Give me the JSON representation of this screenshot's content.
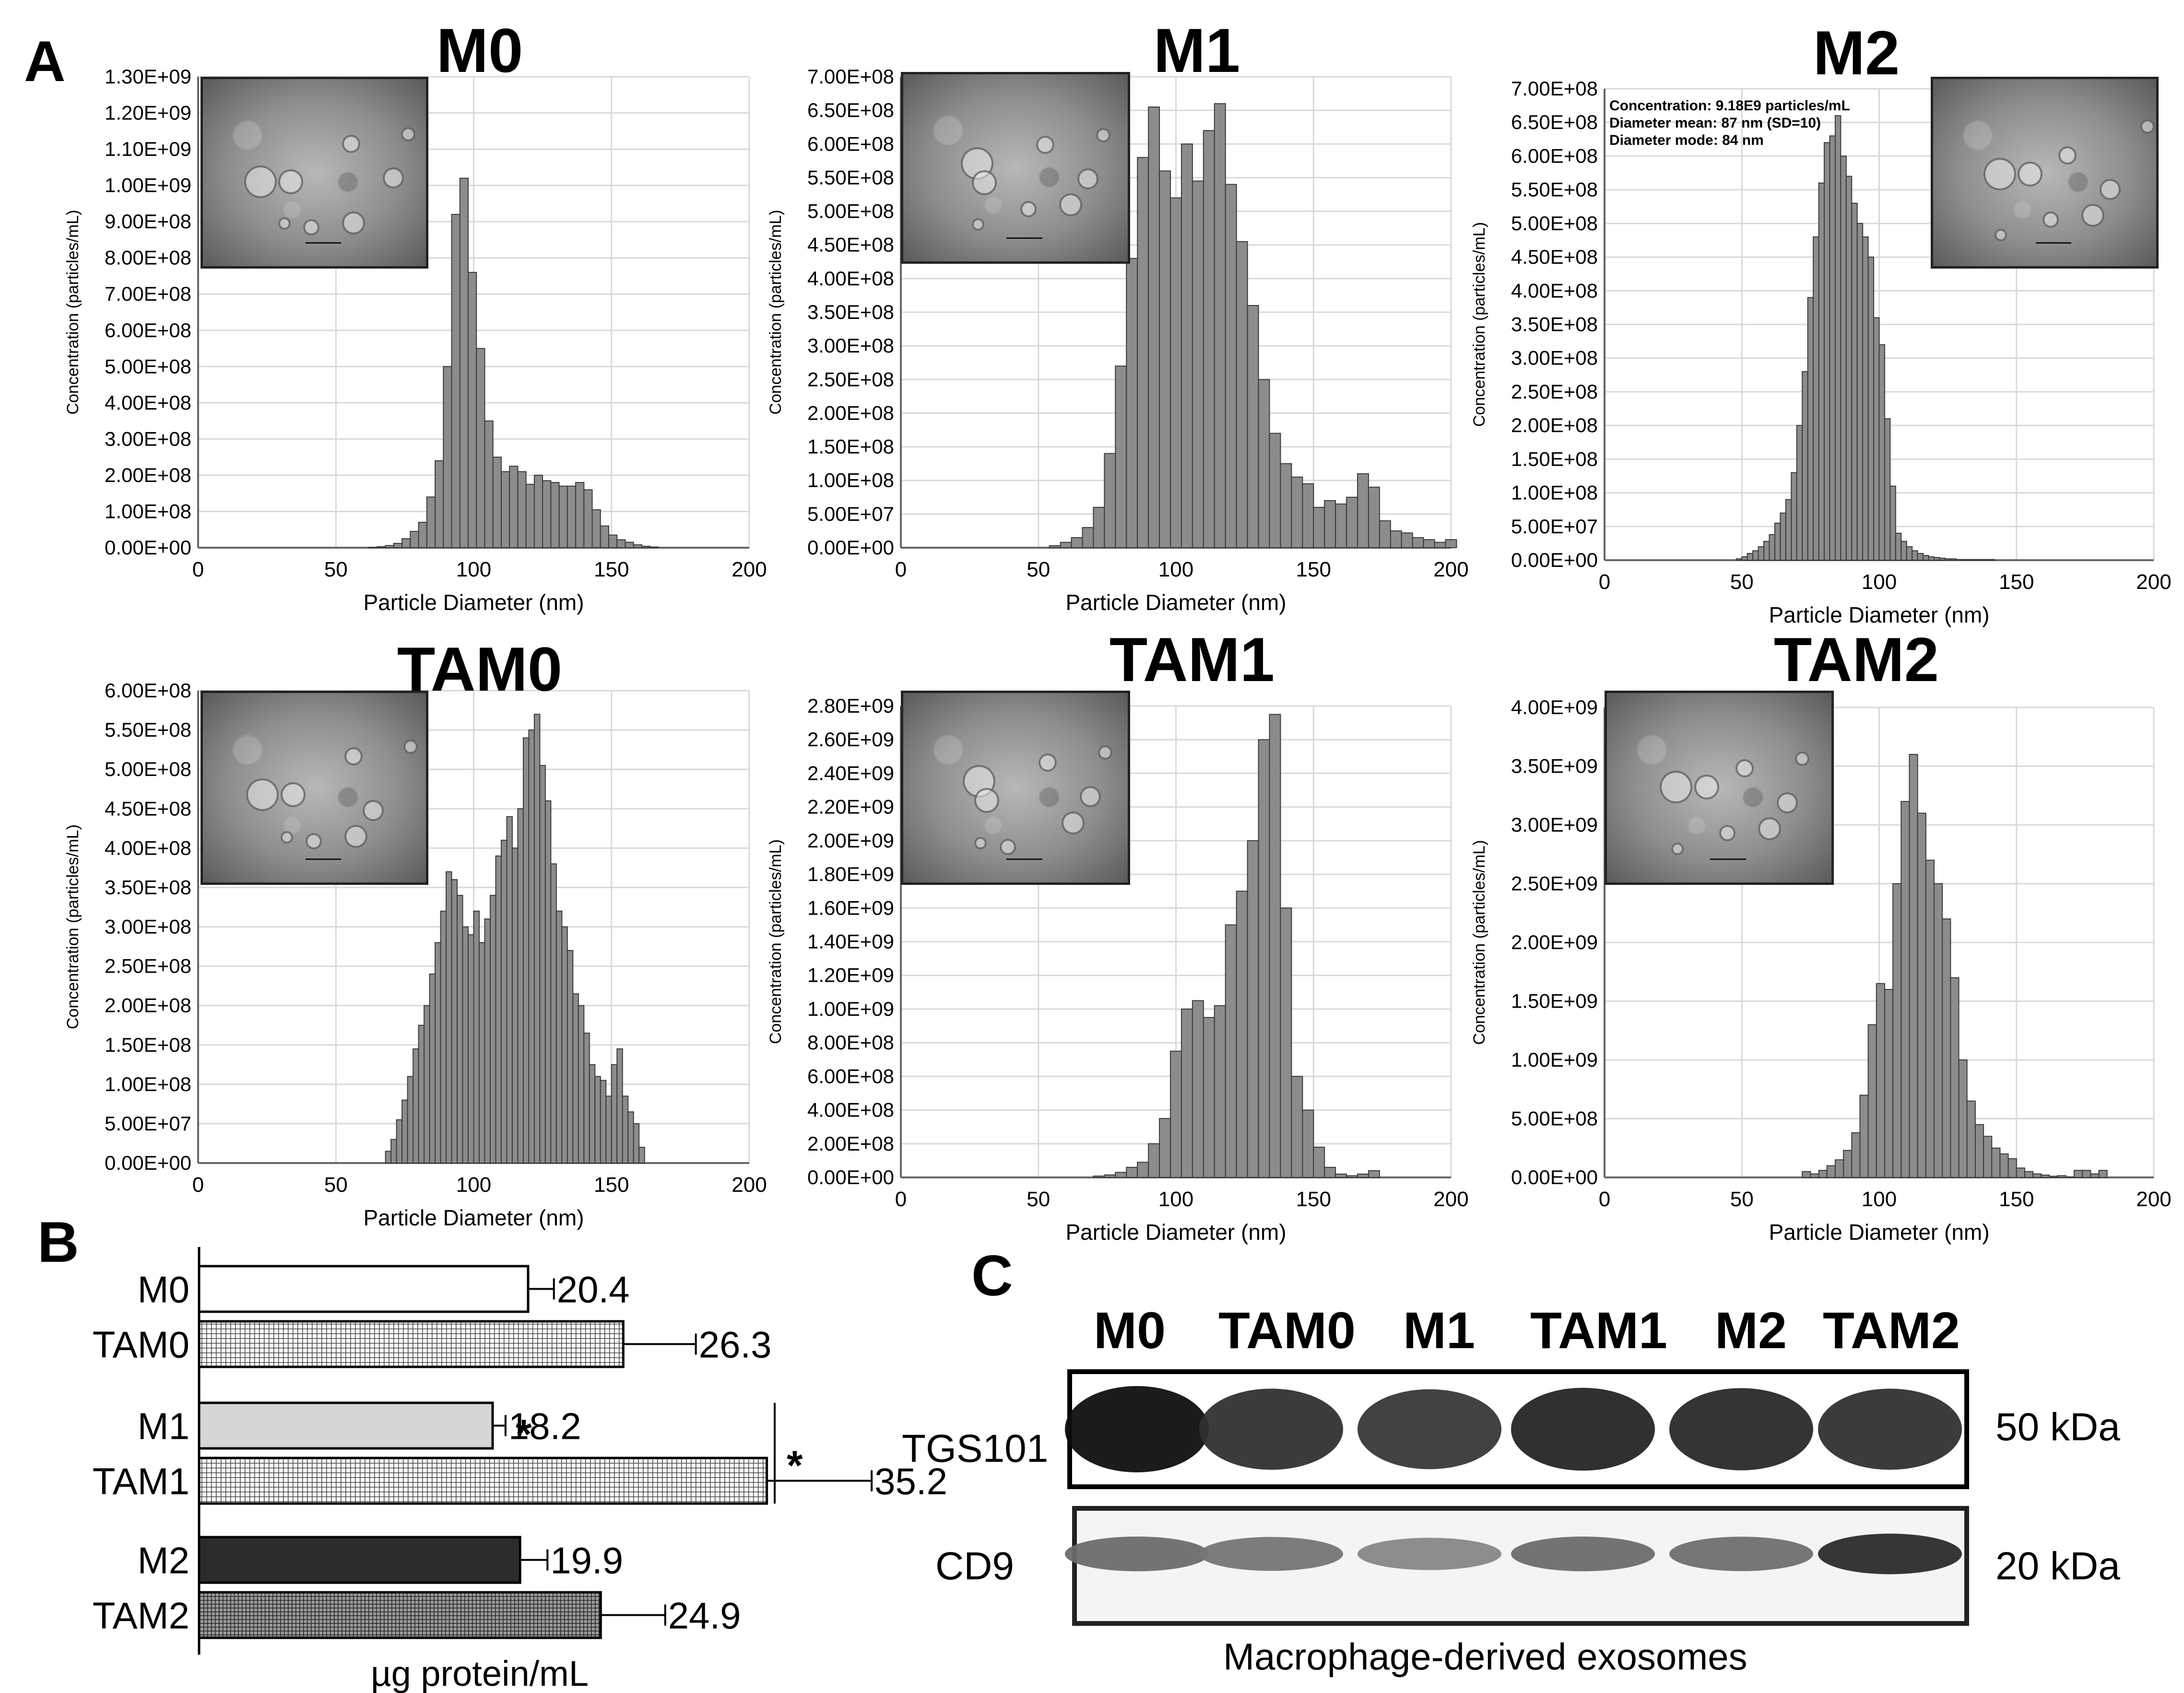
{
  "panel_letters": {
    "a": "A",
    "b": "B",
    "c": "C"
  },
  "colors": {
    "bar_fill": "#8c8c8c",
    "bar_stroke": "#3a3a3a",
    "grid": "#d9d9d9",
    "axis": "#666666"
  },
  "tem_inset_icon": "tem-micrograph-icon",
  "chart_data": [
    {
      "id": "M0",
      "type": "bar",
      "title": "M0",
      "xlabel": "Particle Diameter (nm)",
      "ylabel": "Concentration (particles/mL)",
      "xlim": [
        0,
        200
      ],
      "ylim": [
        0,
        1300000000
      ],
      "xticks": [
        "0",
        "50",
        "100",
        "150",
        "200"
      ],
      "yticks": [
        "0.00E+00",
        "1.00E+08",
        "2.00E+08",
        "3.00E+08",
        "4.00E+08",
        "5.00E+08",
        "6.00E+08",
        "7.00E+08",
        "8.00E+08",
        "9.00E+08",
        "1.00E+09",
        "1.10E+09",
        "1.20E+09",
        "1.30E+09"
      ],
      "bin_width": 3,
      "x": [
        62,
        65,
        68,
        71,
        74,
        77,
        80,
        83,
        86,
        89,
        92,
        95,
        98,
        101,
        104,
        107,
        110,
        113,
        116,
        119,
        122,
        125,
        128,
        131,
        134,
        137,
        140,
        143,
        146,
        149,
        152,
        155,
        158,
        161,
        164
      ],
      "y": [
        1,
        3,
        6,
        12,
        25,
        45,
        70,
        140,
        240,
        500,
        920,
        1020,
        760,
        550,
        350,
        250,
        210,
        225,
        210,
        175,
        200,
        185,
        180,
        170,
        170,
        180,
        160,
        105,
        60,
        35,
        22,
        15,
        8,
        4,
        2
      ],
      "y_scale": 1000000,
      "annotations": [],
      "inset_side": "left"
    },
    {
      "id": "M1",
      "type": "bar",
      "title": "M1",
      "xlabel": "Particle Diameter (nm)",
      "ylabel": "Concentration (particles/mL)",
      "xlim": [
        0,
        200
      ],
      "ylim": [
        0,
        700000000
      ],
      "xticks": [
        "0",
        "50",
        "100",
        "150",
        "200"
      ],
      "yticks": [
        "0.00E+00",
        "5.00E+07",
        "1.00E+08",
        "1.50E+08",
        "2.00E+08",
        "2.50E+08",
        "3.00E+08",
        "3.50E+08",
        "4.00E+08",
        "4.50E+08",
        "5.00E+08",
        "5.50E+08",
        "6.00E+08",
        "6.50E+08",
        "7.00E+08"
      ],
      "bin_width": 4,
      "x": [
        54,
        58,
        62,
        66,
        70,
        74,
        78,
        82,
        86,
        90,
        94,
        98,
        102,
        106,
        110,
        114,
        118,
        122,
        126,
        130,
        134,
        138,
        142,
        146,
        150,
        154,
        158,
        162,
        166,
        170,
        174,
        178,
        182,
        186,
        190,
        194,
        198
      ],
      "y": [
        3,
        8,
        15,
        30,
        60,
        140,
        270,
        430,
        580,
        655,
        560,
        520,
        600,
        545,
        620,
        660,
        540,
        455,
        360,
        250,
        170,
        125,
        105,
        95,
        60,
        70,
        65,
        75,
        110,
        90,
        40,
        25,
        22,
        15,
        12,
        8,
        12
      ],
      "y_scale": 1000000,
      "annotations": [],
      "inset_side": "left"
    },
    {
      "id": "M2",
      "type": "bar",
      "title": "M2",
      "xlabel": "Particle Diameter (nm)",
      "ylabel": "Concentration (particles/mL)",
      "xlim": [
        0,
        200
      ],
      "ylim": [
        0,
        700000000
      ],
      "xticks": [
        "0",
        "50",
        "100",
        "150",
        "200"
      ],
      "yticks": [
        "0.00E+00",
        "5.00E+07",
        "1.00E+08",
        "1.50E+08",
        "2.00E+08",
        "2.50E+08",
        "3.00E+08",
        "3.50E+08",
        "4.00E+08",
        "4.50E+08",
        "5.00E+08",
        "5.50E+08",
        "6.00E+08",
        "6.50E+08",
        "7.00E+08"
      ],
      "bin_width": 2,
      "x": [
        48,
        50,
        52,
        54,
        56,
        58,
        60,
        62,
        64,
        66,
        68,
        70,
        72,
        74,
        76,
        78,
        80,
        82,
        84,
        86,
        88,
        90,
        92,
        94,
        96,
        98,
        100,
        102,
        104,
        106,
        108,
        110,
        112,
        114,
        116,
        118,
        120,
        122,
        124,
        126,
        128,
        130,
        132,
        134,
        136,
        138,
        140
      ],
      "y": [
        2,
        5,
        10,
        14,
        20,
        28,
        38,
        55,
        70,
        90,
        130,
        200,
        280,
        390,
        480,
        560,
        620,
        630,
        660,
        600,
        570,
        530,
        500,
        480,
        450,
        360,
        320,
        210,
        110,
        40,
        28,
        20,
        14,
        10,
        7,
        5,
        4,
        3,
        2,
        2,
        1,
        1,
        1,
        1,
        1,
        1,
        1
      ],
      "y_scale": 1000000,
      "annotations": [
        "Concentration:  9.18E9 particles/mL",
        "Diameter mean:  87 nm (SD=10)",
        "Diameter mode:  84 nm"
      ],
      "inset_side": "right"
    },
    {
      "id": "TAM0",
      "type": "bar",
      "title": "TAM0",
      "xlabel": "Particle Diameter (nm)",
      "ylabel": "Concentration (particles/mL)",
      "xlim": [
        0,
        200
      ],
      "ylim": [
        0,
        600000000
      ],
      "xticks": [
        "0",
        "50",
        "100",
        "150",
        "200"
      ],
      "yticks": [
        "0.00E+00",
        "5.00E+07",
        "1.00E+08",
        "1.50E+08",
        "2.00E+08",
        "2.50E+08",
        "3.00E+08",
        "3.50E+08",
        "4.00E+08",
        "4.50E+08",
        "5.00E+08",
        "5.50E+08",
        "6.00E+08"
      ],
      "bin_width": 2,
      "x": [
        68,
        70,
        72,
        74,
        76,
        78,
        80,
        82,
        84,
        86,
        88,
        90,
        92,
        94,
        96,
        98,
        100,
        102,
        104,
        106,
        108,
        110,
        112,
        114,
        116,
        118,
        120,
        122,
        124,
        126,
        128,
        130,
        132,
        134,
        136,
        138,
        140,
        142,
        144,
        146,
        148,
        150,
        152,
        154,
        156,
        158,
        160
      ],
      "y": [
        15,
        30,
        55,
        80,
        110,
        145,
        175,
        200,
        240,
        280,
        320,
        370,
        360,
        340,
        300,
        290,
        320,
        280,
        310,
        340,
        390,
        410,
        440,
        400,
        450,
        540,
        550,
        570,
        505,
        460,
        380,
        320,
        300,
        270,
        215,
        200,
        165,
        125,
        110,
        105,
        85,
        125,
        145,
        85,
        65,
        50,
        20
      ],
      "y_scale": 1000000,
      "annotations": [],
      "inset_side": "left"
    },
    {
      "id": "TAM1",
      "type": "bar",
      "title": "TAM1",
      "xlabel": "Particle Diameter (nm)",
      "ylabel": "Concentration (particles/mL)",
      "xlim": [
        0,
        200
      ],
      "ylim": [
        0,
        2800000000
      ],
      "xticks": [
        "0",
        "50",
        "100",
        "150",
        "200"
      ],
      "yticks": [
        "0.00E+00",
        "2.00E+08",
        "4.00E+08",
        "6.00E+08",
        "8.00E+08",
        "1.00E+09",
        "1.20E+09",
        "1.40E+09",
        "1.60E+09",
        "1.80E+09",
        "2.00E+09",
        "2.20E+09",
        "2.40E+09",
        "2.60E+09",
        "2.80E+09"
      ],
      "bin_width": 4,
      "x": [
        70,
        74,
        78,
        82,
        86,
        90,
        94,
        98,
        102,
        106,
        110,
        114,
        118,
        122,
        126,
        130,
        134,
        138,
        142,
        146,
        150,
        154,
        158,
        162,
        166,
        170
      ],
      "y": [
        8,
        15,
        30,
        60,
        90,
        200,
        350,
        750,
        1000,
        1050,
        950,
        1020,
        1500,
        1700,
        2000,
        2600,
        2750,
        1600,
        600,
        400,
        180,
        60,
        20,
        10,
        20,
        40
      ],
      "y_scale": 1000000,
      "annotations": [],
      "inset_side": "left"
    },
    {
      "id": "TAM2",
      "type": "bar",
      "title": "TAM2",
      "xlabel": "Particle Diameter (nm)",
      "ylabel": "Concentration (particles/mL)",
      "xlim": [
        0,
        200
      ],
      "ylim": [
        0,
        4000000000
      ],
      "xticks": [
        "0",
        "50",
        "100",
        "150",
        "200"
      ],
      "yticks": [
        "0.00E+00",
        "5.00E+08",
        "1.00E+09",
        "1.50E+09",
        "2.00E+09",
        "2.50E+09",
        "3.00E+09",
        "3.50E+09",
        "4.00E+09"
      ],
      "bin_width": 3,
      "x": [
        72,
        75,
        78,
        81,
        84,
        87,
        90,
        93,
        96,
        99,
        102,
        105,
        108,
        111,
        114,
        117,
        120,
        123,
        126,
        129,
        132,
        135,
        138,
        141,
        144,
        147,
        150,
        153,
        156,
        159,
        162,
        165,
        168,
        171,
        174,
        177,
        180
      ],
      "y": [
        50,
        30,
        60,
        100,
        150,
        230,
        380,
        700,
        1300,
        1650,
        1600,
        2500,
        3200,
        3600,
        3100,
        2700,
        2500,
        2200,
        1700,
        1000,
        650,
        450,
        350,
        250,
        200,
        160,
        80,
        50,
        30,
        20,
        10,
        15,
        5,
        60,
        60,
        30,
        60
      ],
      "y_scale": 1000000,
      "annotations": [],
      "inset_side": "left"
    },
    {
      "id": "B",
      "type": "bar",
      "orientation": "horizontal",
      "xlabel": "µg protein/mL",
      "xlim": [
        0,
        40
      ],
      "categories": [
        "M0",
        "TAM0",
        "M1",
        "TAM1",
        "M2",
        "TAM2"
      ],
      "values": [
        20.4,
        26.3,
        18.2,
        35.2,
        19.9,
        24.9
      ],
      "value_labels": [
        "20.4",
        "26.3",
        "18.2",
        "35.2",
        "19.9",
        "24.9"
      ],
      "errors": [
        1.6,
        4.5,
        0.8,
        6.5,
        1.7,
        4.0
      ],
      "fills": [
        "white",
        "grid-light",
        "lightgray",
        "grid-light",
        "dark",
        "grid-dark"
      ],
      "significance": [
        "*",
        "*"
      ]
    }
  ],
  "western_blot": {
    "lanes": [
      "M0",
      "TAM0",
      "M1",
      "TAM1",
      "M2",
      "TAM2"
    ],
    "rows": [
      {
        "protein": "TGS101",
        "size": "50 kDa",
        "intensities": [
          1.0,
          0.82,
          0.78,
          0.88,
          0.86,
          0.82
        ]
      },
      {
        "protein": "CD9",
        "size": "20 kDa",
        "intensities": [
          0.5,
          0.45,
          0.35,
          0.5,
          0.48,
          0.85
        ]
      }
    ],
    "caption": "Macrophage-derived exosomes"
  }
}
